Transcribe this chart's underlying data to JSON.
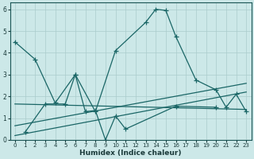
{
  "xlabel": "Humidex (Indice chaleur)",
  "background_color": "#cce8e8",
  "grid_color": "#aacccc",
  "line_color": "#1a6666",
  "xlim": [
    -0.5,
    23.5
  ],
  "ylim": [
    0,
    6.3
  ],
  "yticks": [
    0,
    1,
    2,
    3,
    4,
    5,
    6
  ],
  "xticks": [
    0,
    1,
    2,
    3,
    4,
    5,
    6,
    7,
    8,
    9,
    10,
    11,
    12,
    13,
    14,
    15,
    16,
    17,
    18,
    19,
    20,
    21,
    22,
    23
  ],
  "curve1_x": [
    0,
    2,
    4,
    6,
    8,
    10,
    13,
    14,
    15,
    16,
    18,
    20,
    21,
    22,
    23
  ],
  "curve1_y": [
    4.5,
    3.7,
    1.7,
    3.0,
    1.3,
    4.1,
    5.4,
    6.0,
    5.95,
    4.75,
    2.75,
    2.3,
    1.5,
    2.1,
    1.3
  ],
  "curve2_x": [
    1,
    3,
    5,
    6,
    7,
    8,
    9,
    10,
    11,
    16,
    20
  ],
  "curve2_y": [
    0.35,
    1.65,
    1.65,
    3.0,
    1.3,
    1.35,
    0.0,
    1.1,
    0.5,
    1.55,
    1.5
  ],
  "trend1_x": [
    0,
    23
  ],
  "trend1_y": [
    0.2,
    2.2
  ],
  "trend2_x": [
    0,
    23
  ],
  "trend2_y": [
    1.65,
    1.4
  ],
  "trend3_x": [
    0,
    23
  ],
  "trend3_y": [
    0.65,
    2.6
  ],
  "marker_size": 4,
  "line_width": 0.9
}
